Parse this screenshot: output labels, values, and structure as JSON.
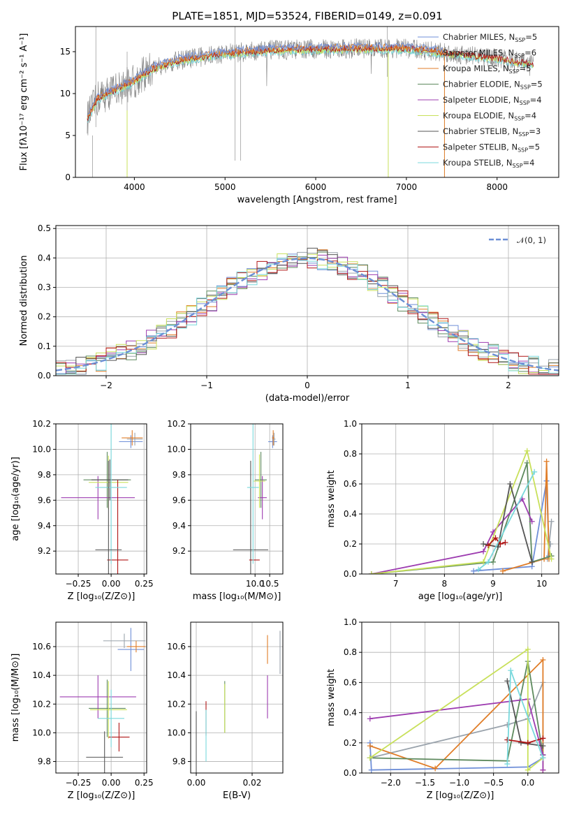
{
  "figure_title": "PLATE=1851, MJD=53524, FIBERID=0149, z=0.091",
  "colors": {
    "Chabrier MILES": "#6f8fd8",
    "Salpeter MILES": "#9aa3ac",
    "Kroupa MILES": "#e07d28",
    "Chabrier ELODIE": "#5e8a5e",
    "Salpeter ELODIE": "#9d3cb0",
    "Kroupa ELODIE": "#c8e05a",
    "Chabrier STELIB": "#555555",
    "Salpeter STELIB": "#b01515",
    "Kroupa STELIB": "#78d8dc",
    "observed": "#808080",
    "normal": "#6c8fd5"
  },
  "chart_data": [
    {
      "id": "spectrum",
      "type": "line",
      "xlabel": "wavelength [Angstrom, rest frame]",
      "ylabel_html": "Flux [fλ10⁻¹⁷ erg cm⁻² s⁻¹ A⁻¹]",
      "xlim": [
        3350,
        8680
      ],
      "ylim": [
        0,
        18
      ],
      "xticks": [
        4000,
        5000,
        6000,
        7000,
        8000
      ],
      "yticks": [
        0,
        5,
        10,
        15
      ],
      "grid": false,
      "legend_position": "right",
      "continuum": {
        "x": [
          3480,
          3600,
          3800,
          4000,
          4200,
          4500,
          5000,
          5500,
          6000,
          6500,
          7000,
          7500,
          8000,
          8400
        ],
        "y": [
          7.0,
          9.5,
          10.5,
          11.5,
          13.0,
          14.0,
          14.8,
          15.2,
          15.3,
          15.4,
          15.4,
          14.8,
          14.2,
          13.5
        ]
      },
      "legend": [
        {
          "label": "Chabrier MILES",
          "n": "5"
        },
        {
          "label": "Salpeter MILES",
          "n": "6"
        },
        {
          "label": "Kroupa MILES",
          "n": "5"
        },
        {
          "label": "Chabrier ELODIE",
          "n": "5"
        },
        {
          "label": "Salpeter ELODIE",
          "n": "4"
        },
        {
          "label": "Kroupa ELODIE",
          "n": "4"
        },
        {
          "label": "Chabrier STELIB",
          "n": "3"
        },
        {
          "label": "Salpeter STELIB",
          "n": "5"
        },
        {
          "label": "Kroupa STELIB",
          "n": "4"
        }
      ]
    },
    {
      "id": "residuals",
      "type": "step",
      "xlabel": "(data-model)/error",
      "ylabel": "Normed distribution",
      "xlim": [
        -2.5,
        2.5
      ],
      "ylim": [
        0,
        0.51
      ],
      "xticks": [
        -2,
        -1,
        0,
        1,
        2
      ],
      "yticks": [
        0.0,
        0.1,
        0.2,
        0.3,
        0.4,
        0.5
      ],
      "grid": true,
      "legend_label": "𝒩(0, 1)",
      "legend_position": "upper right"
    },
    {
      "id": "z_age",
      "type": "errorbar",
      "xlabel": "Z [log₁₀(Z/Z⊙)]",
      "ylabel": "age  [log₁₀(age/yr)]",
      "xlim": [
        -0.42,
        0.27
      ],
      "ylim": [
        9.02,
        10.2
      ],
      "xticks": [
        -0.25,
        0.0,
        0.25
      ],
      "yticks": [
        9.2,
        9.4,
        9.6,
        9.8,
        10.0,
        10.2
      ],
      "points": [
        {
          "s": "Chabrier MILES",
          "x": 0.15,
          "xerr": 0.09,
          "y": 10.06,
          "yerr": 0.05
        },
        {
          "s": "Salpeter MILES",
          "x": 0.18,
          "xerr": 0.06,
          "y": 10.08,
          "yerr": 0.05
        },
        {
          "s": "Kroupa MILES",
          "x": 0.16,
          "xerr": 0.08,
          "y": 10.09,
          "yerr": 0.06
        },
        {
          "s": "Chabrier ELODIE",
          "x": -0.03,
          "xerr": 0.18,
          "y": 9.76,
          "yerr": 0.22
        },
        {
          "s": "Salpeter ELODIE",
          "x": -0.1,
          "xerr": 0.28,
          "y": 9.62,
          "yerr": 0.17
        },
        {
          "s": "Kroupa ELODIE",
          "x": -0.02,
          "xerr": 0.15,
          "y": 9.74,
          "yerr": 0.21
        },
        {
          "s": "Chabrier STELIB",
          "x": -0.01,
          "xerr": 0.14,
          "y": 9.76,
          "yerr": 0.16
        },
        {
          "s": "Salpeter STELIB",
          "x": 0.05,
          "xerr": 0.08,
          "y": 9.13,
          "yerr": 0.63
        },
        {
          "s": "Kroupa STELIB",
          "x": 0.0,
          "xerr": 0.12,
          "y": 9.7,
          "yerr": 0.6
        },
        {
          "s": "Chabrier STELIB",
          "x": -0.02,
          "xerr": 0.1,
          "y": 9.21,
          "yerr": 0.7
        }
      ]
    },
    {
      "id": "mass_age",
      "type": "errorbar",
      "xlabel": "mass [log₁₀(M/M⊙)]",
      "ylabel": "",
      "xlim": [
        7.8,
        10.95
      ],
      "ylim": [
        9.02,
        10.2
      ],
      "xticks": [
        10.0,
        10.5
      ],
      "yticks": [
        9.2,
        9.4,
        9.6,
        9.8,
        10.0,
        10.2
      ],
      "points": [
        {
          "s": "Chabrier MILES",
          "x": 10.6,
          "xerr": 0.15,
          "y": 10.06,
          "yerr": 0.05
        },
        {
          "s": "Salpeter MILES",
          "x": 10.65,
          "xerr": 0.05,
          "y": 10.08,
          "yerr": 0.05
        },
        {
          "s": "Kroupa MILES",
          "x": 10.62,
          "xerr": 0.04,
          "y": 10.09,
          "yerr": 0.06
        },
        {
          "s": "Chabrier ELODIE",
          "x": 10.2,
          "xerr": 0.2,
          "y": 9.76,
          "yerr": 0.22
        },
        {
          "s": "Salpeter ELODIE",
          "x": 10.25,
          "xerr": 0.15,
          "y": 9.62,
          "yerr": 0.17
        },
        {
          "s": "Kroupa ELODIE",
          "x": 10.15,
          "xerr": 0.2,
          "y": 9.75,
          "yerr": 0.21
        },
        {
          "s": "Chabrier STELIB",
          "x": 9.85,
          "xerr": 0.6,
          "y": 9.21,
          "yerr": 0.7
        },
        {
          "s": "Salpeter STELIB",
          "x": 9.98,
          "xerr": 0.18,
          "y": 9.13,
          "yerr": 0.0
        },
        {
          "s": "Kroupa STELIB",
          "x": 9.93,
          "xerr": 0.2,
          "y": 9.7,
          "yerr": 0.6
        }
      ]
    },
    {
      "id": "age_weight",
      "type": "line",
      "xlabel": "age  [log₁₀(age/yr)]",
      "ylabel": "mass weight",
      "xlim": [
        6.3,
        10.35
      ],
      "ylim": [
        0,
        1.0
      ],
      "xticks": [
        7,
        8,
        9,
        10
      ],
      "yticks": [
        0.0,
        0.2,
        0.4,
        0.6,
        0.8,
        1.0
      ],
      "grid": true,
      "series": [
        {
          "s": "Chabrier MILES",
          "x": [
            8.6,
            9.8,
            10.1,
            10.15
          ],
          "y": [
            0.02,
            0.05,
            0.62,
            0.12
          ]
        },
        {
          "s": "Salpeter MILES",
          "x": [
            10.2,
            10.12,
            10.18
          ],
          "y": [
            0.35,
            0.1,
            0.2
          ]
        },
        {
          "s": "Kroupa MILES",
          "x": [
            9.2,
            10.05,
            10.1,
            10.15
          ],
          "y": [
            0.02,
            0.1,
            0.75,
            0.1
          ]
        },
        {
          "s": "Chabrier ELODIE",
          "x": [
            6.5,
            9.0,
            9.7,
            9.8,
            10.2
          ],
          "y": [
            0.0,
            0.08,
            0.74,
            0.08,
            0.12
          ]
        },
        {
          "s": "Salpeter ELODIE",
          "x": [
            6.5,
            8.8,
            9.0,
            9.6,
            9.8
          ],
          "y": [
            0.0,
            0.15,
            0.28,
            0.5,
            0.35
          ]
        },
        {
          "s": "Kroupa ELODIE",
          "x": [
            6.5,
            8.8,
            9.7,
            10.2
          ],
          "y": [
            0.0,
            0.08,
            0.82,
            0.1
          ]
        },
        {
          "s": "Chabrier STELIB",
          "x": [
            8.8,
            9.1,
            9.35,
            9.8
          ],
          "y": [
            0.2,
            0.18,
            0.6,
            0.08
          ]
        },
        {
          "s": "Salpeter STELIB",
          "x": [
            8.9,
            9.05,
            9.15,
            9.25
          ],
          "y": [
            0.19,
            0.24,
            0.2,
            0.21
          ]
        },
        {
          "s": "Kroupa STELIB",
          "x": [
            8.7,
            8.9,
            9.85
          ],
          "y": [
            0.03,
            0.08,
            0.68
          ]
        }
      ]
    },
    {
      "id": "z_mass",
      "type": "errorbar",
      "xlabel": "Z [log₁₀(Z/Z⊙)]",
      "ylabel": "mass [log₁₀(M/M⊙)]",
      "xlim": [
        -0.42,
        0.27
      ],
      "ylim": [
        9.72,
        10.77
      ],
      "xticks": [
        -0.25,
        0.0,
        0.25
      ],
      "yticks": [
        9.8,
        10.0,
        10.2,
        10.4,
        10.6
      ],
      "points": [
        {
          "s": "Chabrier MILES",
          "x": 0.15,
          "xerr": 0.1,
          "y": 10.58,
          "yerr": 0.15
        },
        {
          "s": "Salpeter MILES",
          "x": 0.1,
          "xerr": 0.16,
          "y": 10.64,
          "yerr": 0.05
        },
        {
          "s": "Kroupa MILES",
          "x": 0.19,
          "xerr": 0.07,
          "y": 10.6,
          "yerr": 0.04
        },
        {
          "s": "Chabrier ELODIE",
          "x": -0.03,
          "xerr": 0.14,
          "y": 10.17,
          "yerr": 0.2
        },
        {
          "s": "Salpeter ELODIE",
          "x": -0.1,
          "xerr": 0.29,
          "y": 10.25,
          "yerr": 0.15
        },
        {
          "s": "Kroupa ELODIE",
          "x": -0.02,
          "xerr": 0.14,
          "y": 10.16,
          "yerr": 0.2
        },
        {
          "s": "Chabrier STELIB",
          "x": -0.05,
          "xerr": 0.14,
          "y": 9.83,
          "yerr": 0.18
        },
        {
          "s": "Salpeter STELIB",
          "x": 0.06,
          "xerr": 0.08,
          "y": 9.97,
          "yerr": 0.1
        },
        {
          "s": "Kroupa STELIB",
          "x": 0.0,
          "xerr": 0.1,
          "y": 10.1,
          "yerr": 0.2
        }
      ]
    },
    {
      "id": "ebv_mass",
      "type": "errorbar",
      "xlabel": "E(B-V)",
      "ylabel": "",
      "xlim": [
        -0.002,
        0.031
      ],
      "ylim": [
        9.72,
        10.77
      ],
      "xticks": [
        0.0,
        0.02
      ],
      "yticks": [
        9.8,
        10.0,
        10.2,
        10.4,
        10.6
      ],
      "points": [
        {
          "s": "Chabrier STELIB",
          "x": 0.0,
          "xerr": 0,
          "y": 9.93,
          "yerr": 0.22
        },
        {
          "s": "Salpeter STELIB",
          "x": 0.0035,
          "xerr": 0,
          "y": 10.1,
          "yerr": 0.12
        },
        {
          "s": "Kroupa STELIB",
          "x": 0.0035,
          "xerr": 0,
          "y": 9.98,
          "yerr": 0.18
        },
        {
          "s": "Chabrier ELODIE",
          "x": 0.0102,
          "xerr": 0,
          "y": 10.18,
          "yerr": 0.18
        },
        {
          "s": "Kroupa ELODIE",
          "x": 0.0102,
          "xerr": 0,
          "y": 10.17,
          "yerr": 0.17
        },
        {
          "s": "Kroupa MILES",
          "x": 0.0255,
          "xerr": 0,
          "y": 10.58,
          "yerr": 0.1
        },
        {
          "s": "Salpeter ELODIE",
          "x": 0.0255,
          "xerr": 0,
          "y": 10.25,
          "yerr": 0.15
        },
        {
          "s": "Salpeter MILES",
          "x": 0.03,
          "xerr": 0,
          "y": 10.56,
          "yerr": 0.15
        }
      ]
    },
    {
      "id": "z_weight",
      "type": "line",
      "xlabel": "Z [log₁₀(Z/Z⊙)]",
      "ylabel": "mass weight",
      "xlim": [
        -2.42,
        0.45
      ],
      "ylim": [
        0,
        1.0
      ],
      "xticks": [
        -2.0,
        -1.5,
        -1.0,
        -0.5,
        0.0
      ],
      "yticks": [
        0.0,
        0.2,
        0.4,
        0.6,
        0.8,
        1.0
      ],
      "grid": true,
      "series": [
        {
          "s": "Chabrier MILES",
          "x": [
            -2.3,
            -2.28,
            0.0,
            0.22
          ],
          "y": [
            0.2,
            0.02,
            0.04,
            0.1
          ]
        },
        {
          "s": "Salpeter MILES",
          "x": [
            -2.3,
            -0.3,
            0.0,
            0.22,
            0.22
          ],
          "y": [
            0.1,
            0.32,
            0.36,
            0.6,
            0.12
          ]
        },
        {
          "s": "Kroupa MILES",
          "x": [
            -2.3,
            -1.35,
            0.22,
            0.22
          ],
          "y": [
            0.18,
            0.03,
            0.75,
            0.02
          ]
        },
        {
          "s": "Chabrier ELODIE",
          "x": [
            -2.3,
            -0.3,
            0.0,
            0.22
          ],
          "y": [
            0.1,
            0.08,
            0.74,
            0.12
          ]
        },
        {
          "s": "Salpeter ELODIE",
          "x": [
            -2.3,
            0.0,
            0.22,
            0.22
          ],
          "y": [
            0.36,
            0.49,
            0.12,
            0.02
          ]
        },
        {
          "s": "Kroupa ELODIE",
          "x": [
            -2.3,
            0.0,
            0.0,
            0.22
          ],
          "y": [
            0.1,
            0.82,
            0.02,
            0.1
          ]
        },
        {
          "s": "Chabrier STELIB",
          "x": [
            -0.3,
            -0.1,
            0.22
          ],
          "y": [
            0.61,
            0.2,
            0.18
          ]
        },
        {
          "s": "Salpeter STELIB",
          "x": [
            -0.3,
            0.0,
            0.22
          ],
          "y": [
            0.22,
            0.2,
            0.23
          ]
        },
        {
          "s": "Kroupa STELIB",
          "x": [
            -0.3,
            -0.25,
            0.22
          ],
          "y": [
            0.06,
            0.68,
            0.1
          ]
        }
      ]
    }
  ]
}
